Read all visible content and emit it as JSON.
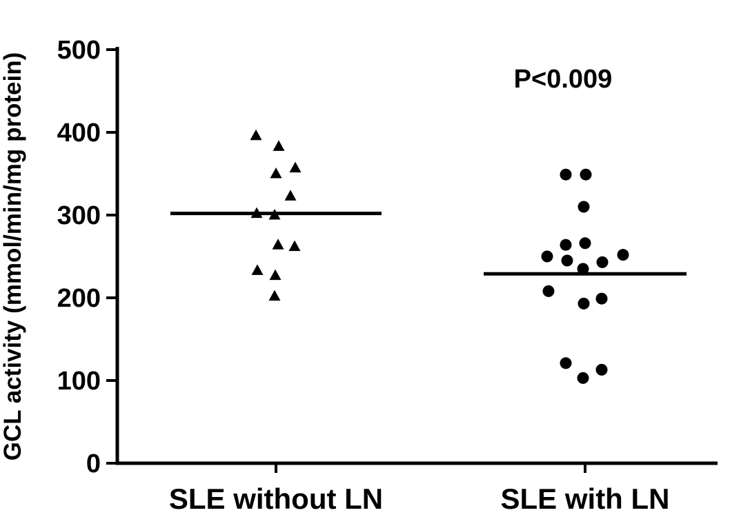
{
  "chart_data": {
    "type": "scatter",
    "title": "",
    "xlabel": "",
    "ylabel": "GCL activity (mmol/min/mg protein)",
    "ylim": [
      0,
      500
    ],
    "yticks": [
      0,
      100,
      200,
      300,
      400,
      500
    ],
    "grid": false,
    "legend": "none",
    "annotation": "P<0.009",
    "marker_color": "#000000",
    "axis_color": "#000000",
    "categories": [
      "SLE without LN",
      "SLE with LN"
    ],
    "series": [
      {
        "name": "SLE without LN",
        "marker": "triangle",
        "color": "#000000",
        "mean": 302,
        "points": [
          [
            -29,
            396
          ],
          [
            4,
            383
          ],
          [
            28,
            357
          ],
          [
            0,
            350
          ],
          [
            21,
            323
          ],
          [
            -28,
            302
          ],
          [
            -2,
            300
          ],
          [
            3,
            264
          ],
          [
            27,
            262
          ],
          [
            -27,
            233
          ],
          [
            -1,
            227
          ],
          [
            -2,
            202
          ]
        ]
      },
      {
        "name": "SLE with LN",
        "marker": "circle",
        "color": "#000000",
        "mean": 229,
        "points": [
          [
            -28,
            349
          ],
          [
            1,
            349
          ],
          [
            -2,
            310
          ],
          [
            -28,
            264
          ],
          [
            0,
            266
          ],
          [
            -55,
            250
          ],
          [
            55,
            252
          ],
          [
            -26,
            245
          ],
          [
            25,
            243
          ],
          [
            -3,
            235
          ],
          [
            -53,
            208
          ],
          [
            24,
            199
          ],
          [
            -2,
            193
          ],
          [
            -28,
            121
          ],
          [
            24,
            113
          ],
          [
            -3,
            103
          ]
        ]
      }
    ]
  }
}
